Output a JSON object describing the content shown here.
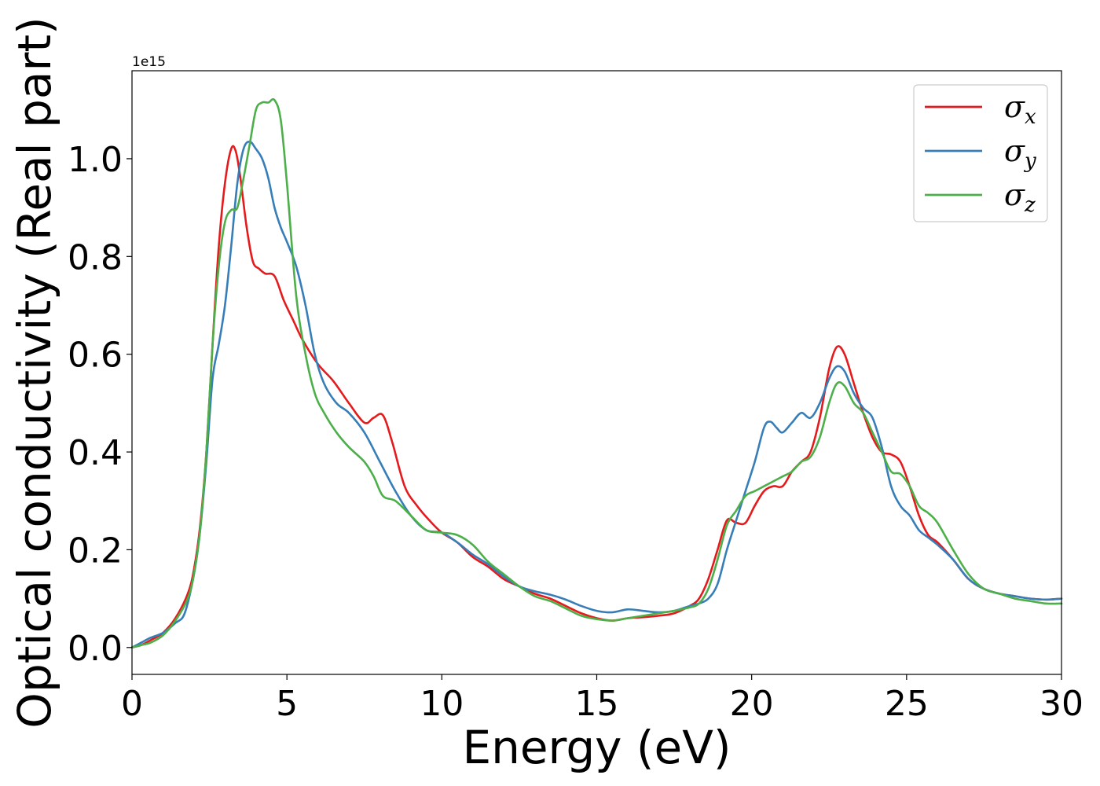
{
  "chart_data": {
    "type": "line",
    "xlabel": "Energy (eV)",
    "ylabel": "Optical conductivity (Real part)",
    "y_offset_label": "1e15",
    "xlim": [
      0,
      30
    ],
    "ylim": [
      -0.055,
      1.18
    ],
    "x_ticks": [
      0,
      5,
      10,
      15,
      20,
      25,
      30
    ],
    "x_tick_labels": [
      "0",
      "5",
      "10",
      "15",
      "20",
      "25",
      "30"
    ],
    "y_ticks": [
      0.0,
      0.2,
      0.4,
      0.6,
      0.8,
      1.0
    ],
    "y_tick_labels": [
      "0.0",
      "0.2",
      "0.4",
      "0.6",
      "0.8",
      "1.0"
    ],
    "grid": false,
    "legend_position": "top-right",
    "series": [
      {
        "name": "σx",
        "symbol": "σ",
        "sub": "x",
        "color": "#e41a1c",
        "x": [
          0,
          0.3,
          0.6,
          1.0,
          1.4,
          1.8,
          2.0,
          2.2,
          2.4,
          2.6,
          2.8,
          3.0,
          3.2,
          3.35,
          3.5,
          3.7,
          3.9,
          4.1,
          4.3,
          4.6,
          4.9,
          5.2,
          5.5,
          6.0,
          6.5,
          7.0,
          7.5,
          7.8,
          8.1,
          8.4,
          8.8,
          9.2,
          9.6,
          10.0,
          10.5,
          11.0,
          11.5,
          12.0,
          12.5,
          13.0,
          13.5,
          14.0,
          14.5,
          15.0,
          15.5,
          16.0,
          16.5,
          17.0,
          17.5,
          18.0,
          18.3,
          18.6,
          18.9,
          19.2,
          19.5,
          19.8,
          20.1,
          20.4,
          20.7,
          21.0,
          21.3,
          21.6,
          21.9,
          22.2,
          22.5,
          22.75,
          23.0,
          23.3,
          23.6,
          23.9,
          24.2,
          24.5,
          24.8,
          25.1,
          25.4,
          25.7,
          26.0,
          26.5,
          27.0,
          27.5,
          28.0,
          28.5,
          29.0,
          29.5,
          30.0
        ],
        "y": [
          0.0,
          0.005,
          0.015,
          0.03,
          0.06,
          0.11,
          0.16,
          0.25,
          0.4,
          0.62,
          0.82,
          0.95,
          1.02,
          1.015,
          0.96,
          0.86,
          0.79,
          0.775,
          0.765,
          0.76,
          0.71,
          0.67,
          0.63,
          0.58,
          0.545,
          0.5,
          0.46,
          0.47,
          0.475,
          0.42,
          0.33,
          0.29,
          0.26,
          0.235,
          0.215,
          0.185,
          0.165,
          0.14,
          0.125,
          0.11,
          0.1,
          0.085,
          0.07,
          0.06,
          0.055,
          0.06,
          0.062,
          0.065,
          0.07,
          0.085,
          0.1,
          0.14,
          0.2,
          0.26,
          0.255,
          0.255,
          0.29,
          0.32,
          0.33,
          0.33,
          0.36,
          0.38,
          0.4,
          0.47,
          0.57,
          0.615,
          0.6,
          0.54,
          0.48,
          0.43,
          0.4,
          0.395,
          0.38,
          0.33,
          0.27,
          0.23,
          0.215,
          0.18,
          0.14,
          0.12,
          0.11,
          0.105,
          0.1,
          0.098,
          0.1
        ]
      },
      {
        "name": "σy",
        "symbol": "σ",
        "sub": "y",
        "color": "#377eb8",
        "x": [
          0,
          0.3,
          0.6,
          1.0,
          1.4,
          1.7,
          2.0,
          2.2,
          2.4,
          2.6,
          2.8,
          3.0,
          3.2,
          3.4,
          3.6,
          3.8,
          4.0,
          4.2,
          4.4,
          4.6,
          4.8,
          5.0,
          5.3,
          5.6,
          5.9,
          6.2,
          6.6,
          7.0,
          7.5,
          8.0,
          8.5,
          9.0,
          9.5,
          10.0,
          10.5,
          11.0,
          11.5,
          12.0,
          12.5,
          13.0,
          13.5,
          14.0,
          14.5,
          15.0,
          15.5,
          16.0,
          16.5,
          17.0,
          17.5,
          18.0,
          18.3,
          18.6,
          18.9,
          19.2,
          19.5,
          19.8,
          20.1,
          20.4,
          20.6,
          20.8,
          21.0,
          21.3,
          21.6,
          21.9,
          22.2,
          22.5,
          22.75,
          23.0,
          23.3,
          23.6,
          23.9,
          24.2,
          24.5,
          24.8,
          25.1,
          25.4,
          25.7,
          26.0,
          26.5,
          27.0,
          27.5,
          28.0,
          28.5,
          29.0,
          29.5,
          30.0
        ],
        "y": [
          0.0,
          0.01,
          0.02,
          0.03,
          0.05,
          0.07,
          0.15,
          0.24,
          0.38,
          0.55,
          0.62,
          0.7,
          0.82,
          0.95,
          1.02,
          1.035,
          1.02,
          1.0,
          0.96,
          0.9,
          0.86,
          0.83,
          0.78,
          0.7,
          0.6,
          0.54,
          0.5,
          0.48,
          0.44,
          0.38,
          0.32,
          0.27,
          0.24,
          0.235,
          0.215,
          0.19,
          0.17,
          0.145,
          0.125,
          0.115,
          0.108,
          0.098,
          0.085,
          0.075,
          0.072,
          0.078,
          0.075,
          0.072,
          0.075,
          0.085,
          0.09,
          0.1,
          0.13,
          0.2,
          0.26,
          0.32,
          0.38,
          0.45,
          0.462,
          0.45,
          0.44,
          0.46,
          0.48,
          0.47,
          0.5,
          0.55,
          0.575,
          0.565,
          0.52,
          0.49,
          0.47,
          0.41,
          0.33,
          0.29,
          0.27,
          0.24,
          0.225,
          0.21,
          0.18,
          0.14,
          0.12,
          0.11,
          0.105,
          0.1,
          0.098,
          0.1
        ]
      },
      {
        "name": "σz",
        "symbol": "σ",
        "sub": "z",
        "color": "#4daf4a",
        "x": [
          0,
          0.3,
          0.6,
          1.0,
          1.4,
          1.8,
          2.0,
          2.2,
          2.4,
          2.6,
          2.8,
          3.0,
          3.2,
          3.4,
          3.6,
          3.8,
          4.0,
          4.2,
          4.4,
          4.6,
          4.8,
          5.0,
          5.3,
          5.6,
          5.9,
          6.2,
          6.6,
          7.0,
          7.5,
          7.8,
          8.1,
          8.5,
          9.0,
          9.5,
          10.0,
          10.5,
          11.0,
          11.5,
          12.0,
          12.5,
          13.0,
          13.5,
          14.0,
          14.5,
          15.0,
          15.5,
          16.0,
          16.5,
          17.0,
          17.5,
          18.0,
          18.3,
          18.6,
          18.9,
          19.2,
          19.5,
          19.8,
          20.1,
          20.4,
          20.7,
          21.0,
          21.3,
          21.6,
          21.9,
          22.2,
          22.5,
          22.75,
          23.0,
          23.3,
          23.6,
          23.9,
          24.2,
          24.5,
          24.8,
          25.1,
          25.4,
          25.7,
          26.0,
          26.5,
          27.0,
          27.5,
          28.0,
          28.5,
          29.0,
          29.5,
          30.0
        ],
        "y": [
          0.0,
          0.005,
          0.01,
          0.025,
          0.055,
          0.1,
          0.15,
          0.24,
          0.4,
          0.62,
          0.78,
          0.87,
          0.895,
          0.9,
          0.96,
          1.03,
          1.1,
          1.115,
          1.115,
          1.12,
          1.08,
          0.95,
          0.72,
          0.6,
          0.52,
          0.48,
          0.44,
          0.41,
          0.38,
          0.35,
          0.31,
          0.3,
          0.27,
          0.24,
          0.235,
          0.23,
          0.21,
          0.175,
          0.15,
          0.125,
          0.105,
          0.095,
          0.08,
          0.065,
          0.058,
          0.055,
          0.06,
          0.065,
          0.07,
          0.075,
          0.082,
          0.09,
          0.12,
          0.18,
          0.25,
          0.28,
          0.31,
          0.32,
          0.33,
          0.34,
          0.35,
          0.36,
          0.38,
          0.39,
          0.43,
          0.5,
          0.54,
          0.535,
          0.5,
          0.48,
          0.44,
          0.4,
          0.36,
          0.355,
          0.33,
          0.29,
          0.275,
          0.255,
          0.2,
          0.15,
          0.12,
          0.11,
          0.1,
          0.095,
          0.09,
          0.09
        ]
      }
    ]
  }
}
